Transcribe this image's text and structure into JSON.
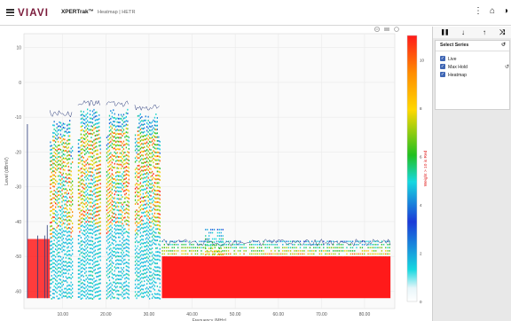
{
  "app": {
    "brand": "VIAVI",
    "product": "XPERTrak™",
    "page_name": "Heatmap | HETR"
  },
  "topbar_icons": [
    {
      "name": "more-vertical-icon",
      "glyph": "⋮"
    },
    {
      "name": "home-icon",
      "glyph": "⌂"
    },
    {
      "name": "contrast-icon",
      "glyph": "◑"
    }
  ],
  "controls": [
    {
      "name": "pause-icon",
      "glyph": "❚❚"
    },
    {
      "name": "arrow-down-icon",
      "glyph": "↓"
    },
    {
      "name": "arrow-up-icon",
      "glyph": "↑"
    },
    {
      "name": "zoom-fit-icon",
      "glyph": "⤨"
    }
  ],
  "series_panel": {
    "title": "Select Series",
    "items": [
      {
        "label": "Live",
        "checked": true
      },
      {
        "label": "Max Hold",
        "checked": true
      },
      {
        "label": "Heatmap",
        "checked": true
      }
    ]
  },
  "chart_data": {
    "type": "heatmap",
    "xlabel": "Frequency (MHz)",
    "ylabel": "Level (dBmV)",
    "colorbar_label": "Weight > 10 is Red",
    "xlim": [
      1,
      87
    ],
    "ylim": [
      -65,
      14
    ],
    "x_ticks": [
      "10.00",
      "20.00",
      "30.00",
      "40.00",
      "50.00",
      "60.00",
      "70.00",
      "80.00"
    ],
    "y_ticks": [
      "10",
      "0",
      "-10",
      "-20",
      "-30",
      "-40",
      "-50",
      "-60"
    ],
    "colorbar_ticks": [
      "10",
      "8",
      "6",
      "4",
      "2",
      "0"
    ],
    "colors": {
      "hot": "#ff1a1a",
      "mid": "#ffd800",
      "green": "#20c020",
      "cyan": "#16d8e0",
      "blue": "#1a3ad8",
      "grid": "#eaeaea"
    },
    "carriers": [
      {
        "x_start": 7.0,
        "x_end": 12.2,
        "peak": -12
      },
      {
        "x_start": 13.5,
        "x_end": 18.9,
        "peak": -9
      },
      {
        "x_start": 20.1,
        "x_end": 25.5,
        "peak": -9
      },
      {
        "x_start": 26.7,
        "x_end": 32.5,
        "peak": -10
      }
    ],
    "noise_floor": {
      "x_start": 33.0,
      "x_end": 86.0,
      "level": -52
    },
    "max_hold_floor": -46
  }
}
